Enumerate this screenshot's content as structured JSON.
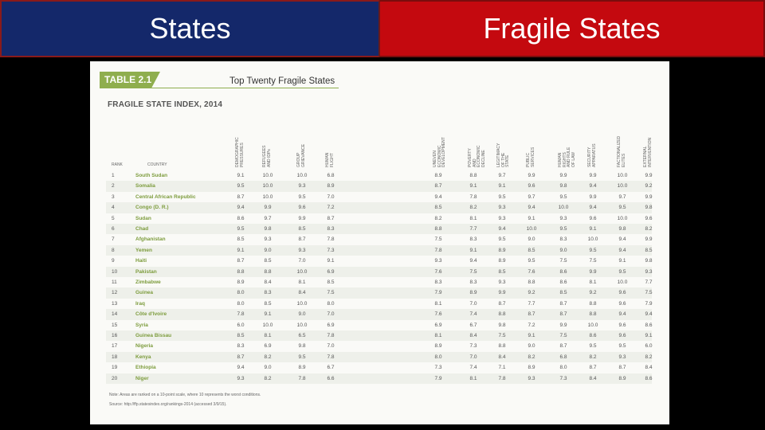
{
  "header": {
    "left_title": "States",
    "right_title": "Fragile States"
  },
  "document": {
    "table_label": "TABLE 2.1",
    "table_title": "Top Twenty Fragile States",
    "index_title": "FRAGILE STATE INDEX, 2014",
    "rank_header": "RANK",
    "country_header": "COUNTRY",
    "columns": [
      "DEMOGRAPHIC PRESSURES",
      "REFUGEES AND IDPs",
      "GROUP GRIEVANCE",
      "HUMAN FLIGHT",
      "UNEVEN ECONOMIC DEVELOPMENT",
      "POVERTY AND ECONOMIC DECLINE",
      "LEGITIMACY OF THE STATE",
      "PUBLIC SERVICES",
      "HUMAN RIGHTS AND RULE OF LAW",
      "SECURITY APPARATUS",
      "FACTIONALIZED ELITES",
      "EXTERNAL INTERVENTION"
    ],
    "rows": [
      {
        "rank": "1",
        "country": "South Sudan",
        "values": [
          "9.1",
          "10.0",
          "10.0",
          "6.8",
          "8.9",
          "8.8",
          "9.7",
          "9.9",
          "9.9",
          "9.9",
          "10.0",
          "9.9"
        ]
      },
      {
        "rank": "2",
        "country": "Somalia",
        "values": [
          "9.5",
          "10.0",
          "9.3",
          "8.9",
          "8.7",
          "9.1",
          "9.1",
          "9.6",
          "9.8",
          "9.4",
          "10.0",
          "9.2"
        ]
      },
      {
        "rank": "3",
        "country": "Central African Republic",
        "values": [
          "8.7",
          "10.0",
          "9.5",
          "7.0",
          "9.4",
          "7.8",
          "9.5",
          "9.7",
          "9.5",
          "9.9",
          "9.7",
          "9.9"
        ]
      },
      {
        "rank": "4",
        "country": "Congo (D. R.)",
        "values": [
          "9.4",
          "9.9",
          "9.6",
          "7.2",
          "8.5",
          "8.2",
          "9.3",
          "9.4",
          "10.0",
          "9.4",
          "9.5",
          "9.8"
        ]
      },
      {
        "rank": "5",
        "country": "Sudan",
        "values": [
          "8.6",
          "9.7",
          "9.9",
          "8.7",
          "8.2",
          "8.1",
          "9.3",
          "9.1",
          "9.3",
          "9.6",
          "10.0",
          "9.6"
        ]
      },
      {
        "rank": "6",
        "country": "Chad",
        "values": [
          "9.5",
          "9.8",
          "8.5",
          "8.3",
          "8.8",
          "7.7",
          "9.4",
          "10.0",
          "9.5",
          "9.1",
          "9.8",
          "8.2"
        ]
      },
      {
        "rank": "7",
        "country": "Afghanistan",
        "values": [
          "8.5",
          "9.3",
          "8.7",
          "7.8",
          "7.5",
          "8.3",
          "9.5",
          "9.0",
          "8.3",
          "10.0",
          "9.4",
          "9.9"
        ]
      },
      {
        "rank": "8",
        "country": "Yemen",
        "values": [
          "9.1",
          "9.0",
          "9.3",
          "7.3",
          "7.8",
          "9.1",
          "8.9",
          "8.5",
          "9.0",
          "9.5",
          "9.4",
          "8.5"
        ]
      },
      {
        "rank": "9",
        "country": "Haiti",
        "values": [
          "8.7",
          "8.5",
          "7.0",
          "9.1",
          "9.3",
          "9.4",
          "8.9",
          "9.5",
          "7.5",
          "7.5",
          "9.1",
          "9.8"
        ]
      },
      {
        "rank": "10",
        "country": "Pakistan",
        "values": [
          "8.8",
          "8.8",
          "10.0",
          "6.9",
          "7.6",
          "7.5",
          "8.5",
          "7.6",
          "8.6",
          "9.9",
          "9.5",
          "9.3"
        ]
      },
      {
        "rank": "11",
        "country": "Zimbabwe",
        "values": [
          "8.9",
          "8.4",
          "8.1",
          "8.5",
          "8.3",
          "8.3",
          "9.3",
          "8.8",
          "8.6",
          "8.1",
          "10.0",
          "7.7"
        ]
      },
      {
        "rank": "12",
        "country": "Guinea",
        "values": [
          "8.0",
          "8.3",
          "8.4",
          "7.5",
          "7.9",
          "8.9",
          "9.9",
          "9.2",
          "8.5",
          "9.2",
          "9.6",
          "7.5"
        ]
      },
      {
        "rank": "13",
        "country": "Iraq",
        "values": [
          "8.0",
          "8.5",
          "10.0",
          "8.0",
          "8.1",
          "7.0",
          "8.7",
          "7.7",
          "8.7",
          "8.8",
          "9.6",
          "7.9"
        ]
      },
      {
        "rank": "14",
        "country": "Côte d'Ivoire",
        "values": [
          "7.8",
          "9.1",
          "9.0",
          "7.0",
          "7.6",
          "7.4",
          "8.8",
          "8.7",
          "8.7",
          "8.8",
          "9.4",
          "9.4"
        ]
      },
      {
        "rank": "15",
        "country": "Syria",
        "values": [
          "6.0",
          "10.0",
          "10.0",
          "6.9",
          "6.9",
          "6.7",
          "9.8",
          "7.2",
          "9.9",
          "10.0",
          "9.6",
          "8.6"
        ]
      },
      {
        "rank": "16",
        "country": "Guinea Bissau",
        "values": [
          "8.5",
          "8.1",
          "6.5",
          "7.8",
          "8.1",
          "8.4",
          "7.5",
          "9.1",
          "7.5",
          "8.6",
          "9.6",
          "9.1"
        ]
      },
      {
        "rank": "17",
        "country": "Nigeria",
        "values": [
          "8.3",
          "6.9",
          "9.8",
          "7.0",
          "8.9",
          "7.3",
          "8.8",
          "9.0",
          "8.7",
          "9.5",
          "9.5",
          "6.0"
        ]
      },
      {
        "rank": "18",
        "country": "Kenya",
        "values": [
          "8.7",
          "8.2",
          "9.5",
          "7.8",
          "8.0",
          "7.0",
          "8.4",
          "8.2",
          "6.8",
          "8.2",
          "9.3",
          "8.2"
        ]
      },
      {
        "rank": "19",
        "country": "Ethiopia",
        "values": [
          "9.4",
          "9.0",
          "8.9",
          "6.7",
          "7.3",
          "7.4",
          "7.1",
          "8.9",
          "8.0",
          "8.7",
          "8.7",
          "8.4"
        ]
      },
      {
        "rank": "20",
        "country": "Niger",
        "values": [
          "9.3",
          "8.2",
          "7.8",
          "6.6",
          "7.9",
          "8.1",
          "7.8",
          "9.3",
          "7.3",
          "8.4",
          "8.9",
          "8.6"
        ]
      }
    ],
    "note": "Note: Areas are ranked on a 10-point scale, where 10 represents the worst conditions.",
    "source": "Source: http://ffp.statesindex.org/rankings-2014 (accessed 3/9/15)."
  },
  "colors": {
    "left_tab": "#14286a",
    "right_tab": "#c4090f",
    "accent_green": "#8fae4e",
    "country_green": "#7d9c3d"
  }
}
